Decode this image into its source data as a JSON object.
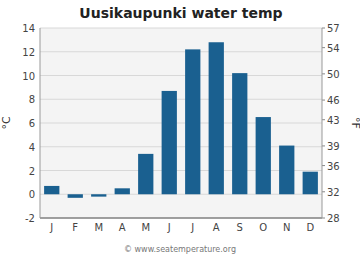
{
  "chart_data": {
    "type": "bar",
    "title": "Uusikaupunki water temp",
    "categories": [
      "J",
      "F",
      "M",
      "A",
      "M",
      "J",
      "J",
      "A",
      "S",
      "O",
      "N",
      "D"
    ],
    "values": [
      0.7,
      -0.3,
      -0.2,
      0.5,
      3.4,
      8.7,
      12.2,
      12.8,
      10.2,
      6.5,
      4.1,
      1.9
    ],
    "color": "#1a6090",
    "ylabel": "°C",
    "y2label": "°F",
    "ylim": [
      -2,
      14
    ],
    "yticks": [
      -2,
      0,
      2,
      4,
      6,
      8,
      10,
      12,
      14
    ],
    "y2lim": [
      28,
      57
    ],
    "y2ticks": [
      28,
      32,
      36,
      39,
      43,
      46,
      50,
      54,
      57
    ],
    "grid": true,
    "annotation": "© www.seatemperature.org"
  }
}
